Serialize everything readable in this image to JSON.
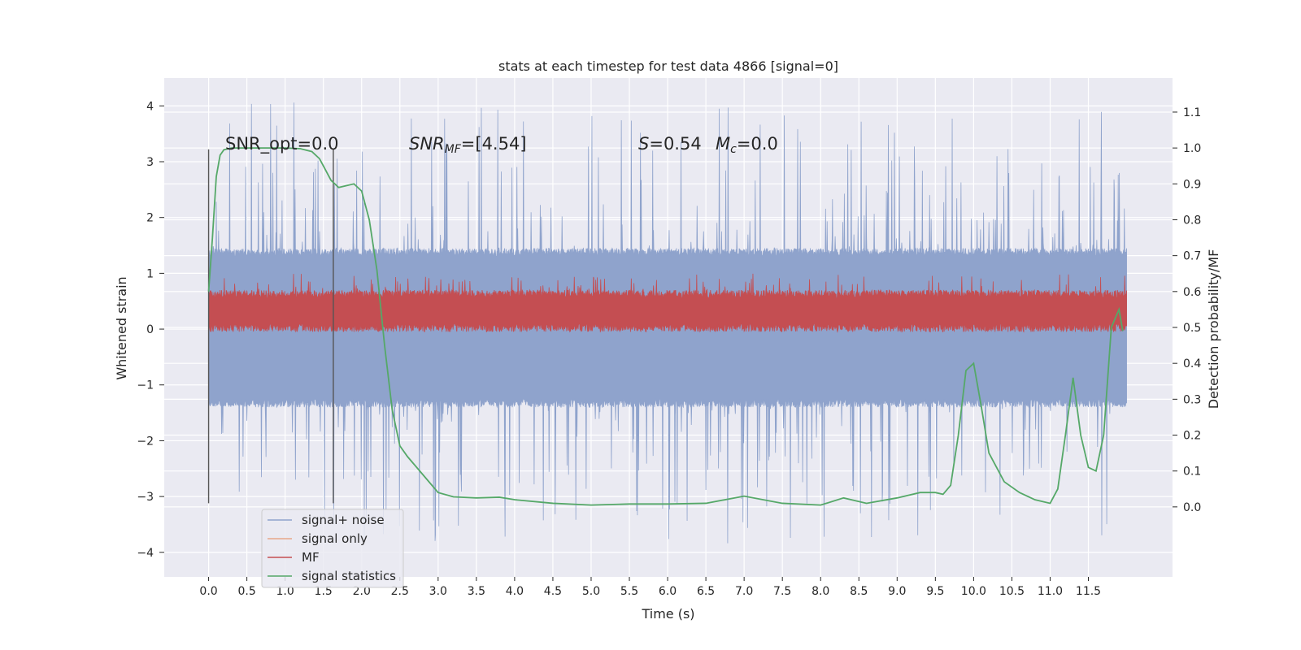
{
  "chart_data": {
    "type": "line",
    "title": "stats at each timestep for test data 4866 [signal=0]",
    "xlabel": "Time (s)",
    "ylabel": "Whitened strain",
    "y2label": "Detection probability/MF",
    "xlim": [
      -0.58,
      12.6
    ],
    "ylim": [
      -4.44,
      4.5
    ],
    "y2lim": [
      -0.195,
      1.195
    ],
    "x_ticks": [
      0.0,
      0.5,
      1.0,
      1.5,
      2.0,
      2.5,
      3.0,
      3.5,
      4.0,
      4.5,
      5.0,
      5.5,
      6.0,
      6.5,
      7.0,
      7.5,
      8.0,
      8.5,
      9.0,
      9.5,
      10.0,
      10.5,
      11.0,
      11.5
    ],
    "x_tick_labels": [
      "0.0",
      "0.5",
      "1.0",
      "1.5",
      "2.0",
      "2.5",
      "3.0",
      "3.5",
      "4.0",
      "4.5",
      "5.0",
      "5.5",
      "6.0",
      "6.5",
      "7.0",
      "7.5",
      "8.0",
      "8.5",
      "9.0",
      "9.5",
      "10.0",
      "10.5",
      "11.0",
      "11.5"
    ],
    "y_ticks": [
      -4,
      -3,
      -2,
      -1,
      0,
      1,
      2,
      3,
      4
    ],
    "y_tick_labels": [
      "−4",
      "−3",
      "−2",
      "−1",
      "0",
      "1",
      "2",
      "3",
      "4"
    ],
    "y2_ticks": [
      0.0,
      0.1,
      0.2,
      0.3,
      0.4,
      0.5,
      0.6,
      0.7,
      0.8,
      0.9,
      1.0,
      1.1
    ],
    "y2_tick_labels": [
      "0.0",
      "0.1",
      "0.2",
      "0.3",
      "0.4",
      "0.5",
      "0.6",
      "0.7",
      "0.8",
      "0.9",
      "1.0",
      "1.1"
    ],
    "grid": true,
    "legend_position": "lower-left",
    "annotations": {
      "snr_opt": "SNR_opt=0.0",
      "snr_mf_prefix": "SNR",
      "snr_mf_sub": "MF",
      "snr_mf_value": "=[4.54]",
      "s_label": "S",
      "s_value": "=0.54",
      "mc_label": "M",
      "mc_sub": "c",
      "mc_value": "=0.0"
    },
    "vertical_lines": [
      {
        "x": 0.0,
        "y_from": -3.12,
        "y_to": 3.22
      },
      {
        "x": 1.63,
        "y_from": -3.12,
        "y_to": 3.22
      }
    ],
    "series": [
      {
        "name": "signal+ noise",
        "axis": "left",
        "color": "#8fa3cc",
        "kind": "noise_band",
        "x_range": [
          0.0,
          12.0
        ],
        "base_low": -1.25,
        "base_high": 1.3,
        "peak_max": 4.1,
        "peak_min": -3.85
      },
      {
        "name": "signal only",
        "axis": "left",
        "color": "#e8a88a",
        "kind": "flat",
        "values_note": ""
      },
      {
        "name": "MF",
        "axis": "left",
        "color": "#c44e52",
        "kind": "noise_band",
        "x_range": [
          0.0,
          12.0
        ],
        "base_low": 0.1,
        "base_high": 0.55,
        "peak_max": 1.0,
        "peak_min": 0.05
      },
      {
        "name": "signal statistics",
        "axis": "right",
        "color": "#55a868",
        "kind": "line",
        "x": [
          0.0,
          0.05,
          0.1,
          0.15,
          0.2,
          0.3,
          0.5,
          0.8,
          1.0,
          1.2,
          1.35,
          1.45,
          1.5,
          1.6,
          1.7,
          1.8,
          1.9,
          2.0,
          2.1,
          2.2,
          2.3,
          2.4,
          2.5,
          2.6,
          2.8,
          3.0,
          3.2,
          3.5,
          3.8,
          4.0,
          4.5,
          5.0,
          5.5,
          6.0,
          6.5,
          7.0,
          7.5,
          8.0,
          8.3,
          8.6,
          9.0,
          9.3,
          9.5,
          9.6,
          9.7,
          9.8,
          9.9,
          10.0,
          10.1,
          10.2,
          10.4,
          10.6,
          10.8,
          11.0,
          11.1,
          11.2,
          11.3,
          11.4,
          11.5,
          11.6,
          11.7,
          11.8,
          11.9,
          11.95
        ],
        "y": [
          0.6,
          0.75,
          0.92,
          0.98,
          0.995,
          1.0,
          1.0,
          1.0,
          1.0,
          0.998,
          0.99,
          0.97,
          0.95,
          0.91,
          0.89,
          0.895,
          0.9,
          0.88,
          0.8,
          0.66,
          0.45,
          0.27,
          0.17,
          0.14,
          0.09,
          0.04,
          0.028,
          0.025,
          0.027,
          0.02,
          0.01,
          0.005,
          0.008,
          0.008,
          0.01,
          0.03,
          0.01,
          0.005,
          0.025,
          0.01,
          0.025,
          0.04,
          0.04,
          0.035,
          0.06,
          0.2,
          0.38,
          0.4,
          0.28,
          0.15,
          0.07,
          0.04,
          0.02,
          0.01,
          0.05,
          0.2,
          0.36,
          0.2,
          0.11,
          0.1,
          0.2,
          0.5,
          0.55,
          0.49
        ]
      }
    ]
  }
}
